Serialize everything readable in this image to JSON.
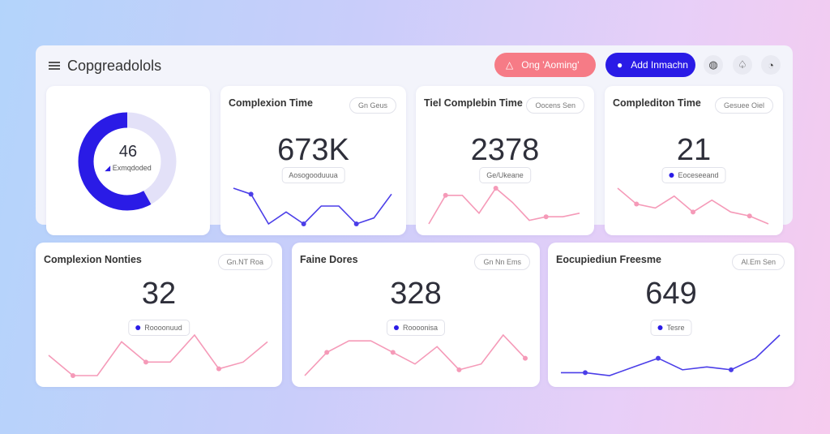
{
  "header": {
    "title": "Copgreadolols",
    "alert_button": "Ong 'Aoming'",
    "add_button": "Add Inmachn",
    "icons": [
      "globe-icon",
      "bell-icon",
      "profile-icon"
    ]
  },
  "colors": {
    "accent": "#2a1be6",
    "alert": "#f67b86",
    "spark_pink": "#f59ab8",
    "spark_blue": "#4b3ee8"
  },
  "donut": {
    "value": "46",
    "label": "Exmqdoded",
    "percent": 58
  },
  "cards": [
    {
      "title": "Complexion Time",
      "tag": "Gn Geus",
      "value": "673K",
      "sub": "Aosogooduuua",
      "color": "blue",
      "spark": [
        7,
        6,
        1,
        3,
        1,
        4,
        4,
        1,
        2,
        6
      ]
    },
    {
      "title": "Tiel Complebin Time",
      "tag": "Oocens Sen",
      "value": "2378",
      "sub": "Ge/Ukeane",
      "color": "pink",
      "spark": [
        0,
        8,
        8,
        3,
        10,
        6,
        1,
        2,
        2,
        3
      ]
    },
    {
      "title": "Complediton Time",
      "tag": "Gesuee Oiel",
      "value": "21",
      "sub": "Eoceseeand",
      "color": "pink",
      "sub_dot": true,
      "spark": [
        9,
        5,
        4,
        7,
        3,
        6,
        3,
        2,
        0
      ]
    },
    {
      "title": "Complexion Nonties",
      "tag": "Gn.NT Roa",
      "value": "32",
      "sub": "Roooonuud",
      "color": "pink",
      "sub_dot": true,
      "spark": [
        5,
        2,
        2,
        7,
        4,
        4,
        8,
        3,
        4,
        7
      ]
    },
    {
      "title": "Faine Dores",
      "tag": "Gn Nn Ems",
      "value": "328",
      "sub": "Roooonisa",
      "color": "pink",
      "sub_dot": true,
      "spark": [
        0,
        4,
        6,
        6,
        4,
        2,
        5,
        1,
        2,
        7,
        3
      ]
    },
    {
      "title": "Eocupiediun Freesme",
      "tag": "Al.Em Sen",
      "value": "649",
      "sub": "Tesre",
      "color": "blue",
      "sub_dot": true,
      "spark": [
        1,
        1,
        0,
        3,
        6,
        2,
        3,
        2,
        6,
        14
      ]
    }
  ]
}
